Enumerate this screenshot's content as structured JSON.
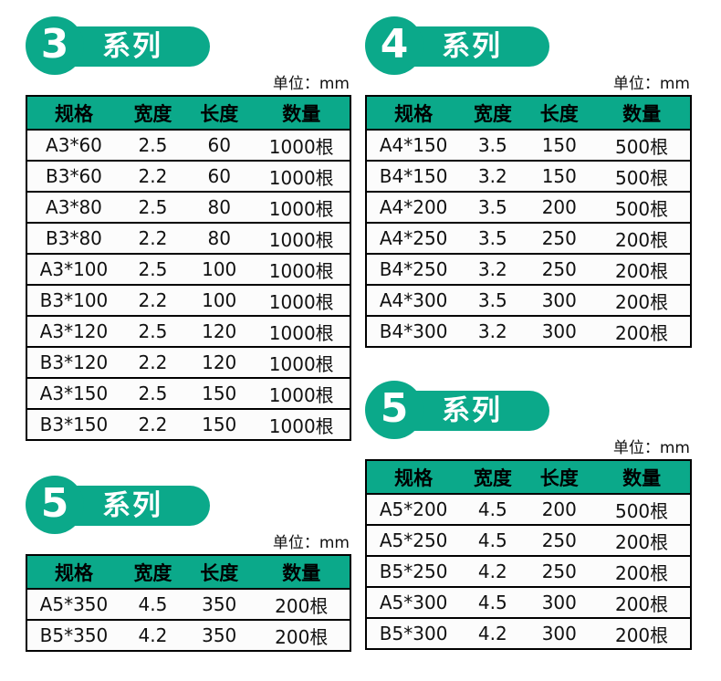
{
  "colors": {
    "accent": "#0ba98a",
    "border": "#000000",
    "text": "#111111",
    "badge_text": "#ffffff",
    "row_bg": "#fcfcfc"
  },
  "unit_label": "单位：mm",
  "columns": [
    "规格",
    "宽度",
    "长度",
    "数量"
  ],
  "sections": [
    {
      "name": "series-3",
      "badge_number": "3",
      "badge_label": "系列",
      "rows": [
        [
          "A3*60",
          "2.5",
          "60",
          "1000根"
        ],
        [
          "B3*60",
          "2.2",
          "60",
          "1000根"
        ],
        [
          "A3*80",
          "2.5",
          "80",
          "1000根"
        ],
        [
          "B3*80",
          "2.2",
          "80",
          "1000根"
        ],
        [
          "A3*100",
          "2.5",
          "100",
          "1000根"
        ],
        [
          "B3*100",
          "2.2",
          "100",
          "1000根"
        ],
        [
          "A3*120",
          "2.5",
          "120",
          "1000根"
        ],
        [
          "B3*120",
          "2.2",
          "120",
          "1000根"
        ],
        [
          "A3*150",
          "2.5",
          "150",
          "1000根"
        ],
        [
          "B3*150",
          "2.2",
          "150",
          "1000根"
        ]
      ]
    },
    {
      "name": "series-4",
      "badge_number": "4",
      "badge_label": "系列",
      "rows": [
        [
          "A4*150",
          "3.5",
          "150",
          "500根"
        ],
        [
          "B4*150",
          "3.2",
          "150",
          "500根"
        ],
        [
          "A4*200",
          "3.5",
          "200",
          "500根"
        ],
        [
          "A4*250",
          "3.5",
          "250",
          "200根"
        ],
        [
          "B4*250",
          "3.2",
          "250",
          "200根"
        ],
        [
          "A4*300",
          "3.5",
          "300",
          "200根"
        ],
        [
          "B4*300",
          "3.2",
          "300",
          "200根"
        ]
      ]
    },
    {
      "name": "series-5-bottom-left",
      "badge_number": "5",
      "badge_label": "系列",
      "rows": [
        [
          "A5*350",
          "4.5",
          "350",
          "200根"
        ],
        [
          "B5*350",
          "4.2",
          "350",
          "200根"
        ]
      ]
    },
    {
      "name": "series-5-right",
      "badge_number": "5",
      "badge_label": "系列",
      "rows": [
        [
          "A5*200",
          "4.5",
          "200",
          "500根"
        ],
        [
          "A5*250",
          "4.5",
          "250",
          "200根"
        ],
        [
          "B5*250",
          "4.2",
          "250",
          "200根"
        ],
        [
          "A5*300",
          "4.5",
          "300",
          "200根"
        ],
        [
          "B5*300",
          "4.2",
          "300",
          "200根"
        ]
      ]
    }
  ]
}
